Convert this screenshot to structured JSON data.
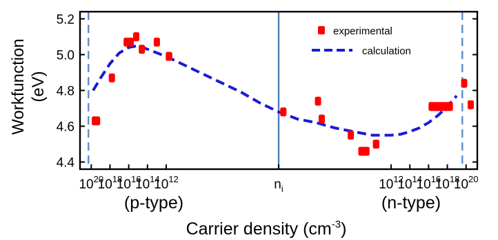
{
  "chart_data": {
    "type": "scatter",
    "ylabel": "Workfunction (eV)",
    "ylabel_line1": "Workfunction",
    "ylabel_line2": "(eV)",
    "xlabel": "Carrier density (cm-3)",
    "xlabel_main": "Carrier density (cm",
    "xlabel_exp": "-3",
    "xlabel_close": ")",
    "ylim": [
      4.36,
      5.24
    ],
    "yticks": [
      "4.4",
      "4.6",
      "4.8",
      "5.0",
      "5.2"
    ],
    "yticks_values": [
      4.4,
      4.6,
      4.8,
      5.0,
      5.2
    ],
    "xlim": [
      -21.2,
      21.2
    ],
    "xticks": [
      {
        "value": -20,
        "base": "10",
        "exp": "20"
      },
      {
        "value": -18,
        "base": "10",
        "exp": "18"
      },
      {
        "value": -16,
        "base": "10",
        "exp": "16"
      },
      {
        "value": -14,
        "base": "10",
        "exp": "14"
      },
      {
        "value": -12,
        "base": "10",
        "exp": "12"
      },
      {
        "value": 0,
        "base": "n",
        "exp": "i",
        "subscript": true
      },
      {
        "value": 12,
        "base": "10",
        "exp": "12"
      },
      {
        "value": 14,
        "base": "10",
        "exp": "14"
      },
      {
        "value": 16,
        "base": "10",
        "exp": "16"
      },
      {
        "value": 18,
        "base": "10",
        "exp": "18"
      },
      {
        "value": 20,
        "base": "10",
        "exp": "20"
      }
    ],
    "x_axis_note": "x is a signed log10 carrier density: negative = holes (p-type), positive = electrons (n-type), 0 = n_i",
    "region_labels": [
      "(p-type)",
      "(n-type)"
    ],
    "reference_lines": [
      {
        "x": 0,
        "label": "n_i",
        "style": "solid"
      },
      {
        "x": -20.3,
        "style": "dashed"
      },
      {
        "x": 19.6,
        "style": "dashed"
      }
    ],
    "legend": {
      "position": "top-right",
      "entries": [
        "experimental",
        "calculation"
      ]
    },
    "grid": false,
    "series": [
      {
        "name": "experimental",
        "marker": "rounded-rectangle",
        "color": "#ff0000",
        "points": [
          {
            "x": -19.5,
            "y": 4.63,
            "span": 0.9
          },
          {
            "x": -17.8,
            "y": 4.87,
            "span": 0.5
          },
          {
            "x": -16.0,
            "y": 5.07,
            "span": 1.1
          },
          {
            "x": -15.2,
            "y": 5.1,
            "span": 0.6
          },
          {
            "x": -14.6,
            "y": 5.03,
            "span": 0.6
          },
          {
            "x": -13.0,
            "y": 5.07,
            "span": 0.6
          },
          {
            "x": -11.7,
            "y": 4.99,
            "span": 0.7
          },
          {
            "x": 0.5,
            "y": 4.68,
            "span": 0.6
          },
          {
            "x": 4.2,
            "y": 4.74,
            "span": 0.6
          },
          {
            "x": 4.6,
            "y": 4.64,
            "span": 0.6
          },
          {
            "x": 7.7,
            "y": 4.55,
            "span": 0.5
          },
          {
            "x": 9.1,
            "y": 4.46,
            "span": 1.2
          },
          {
            "x": 10.4,
            "y": 4.5,
            "span": 0.7
          },
          {
            "x": 17.3,
            "y": 4.71,
            "span": 2.6
          },
          {
            "x": 19.8,
            "y": 4.84,
            "span": 0.5
          },
          {
            "x": 20.5,
            "y": 4.72,
            "span": 0.5
          }
        ]
      },
      {
        "name": "calculation",
        "style": "dashed",
        "color": "#1a1ad6",
        "x": [
          -19.8,
          -19.0,
          -18.0,
          -17.0,
          -16.0,
          -15.0,
          -14.0,
          -12.0,
          -10.0,
          -8.0,
          -6.0,
          -4.0,
          -2.0,
          0.0,
          2.0,
          4.0,
          6.0,
          8.0,
          10.0,
          11.0,
          12.0,
          13.0,
          14.0,
          15.0,
          16.0,
          17.0,
          18.0,
          19.0
        ],
        "y": [
          4.8,
          4.87,
          4.95,
          5.01,
          5.04,
          5.05,
          5.03,
          4.99,
          4.94,
          4.89,
          4.84,
          4.79,
          4.73,
          4.68,
          4.64,
          4.62,
          4.59,
          4.57,
          4.55,
          4.55,
          4.55,
          4.555,
          4.57,
          4.59,
          4.62,
          4.66,
          4.71,
          4.77
        ]
      }
    ]
  }
}
